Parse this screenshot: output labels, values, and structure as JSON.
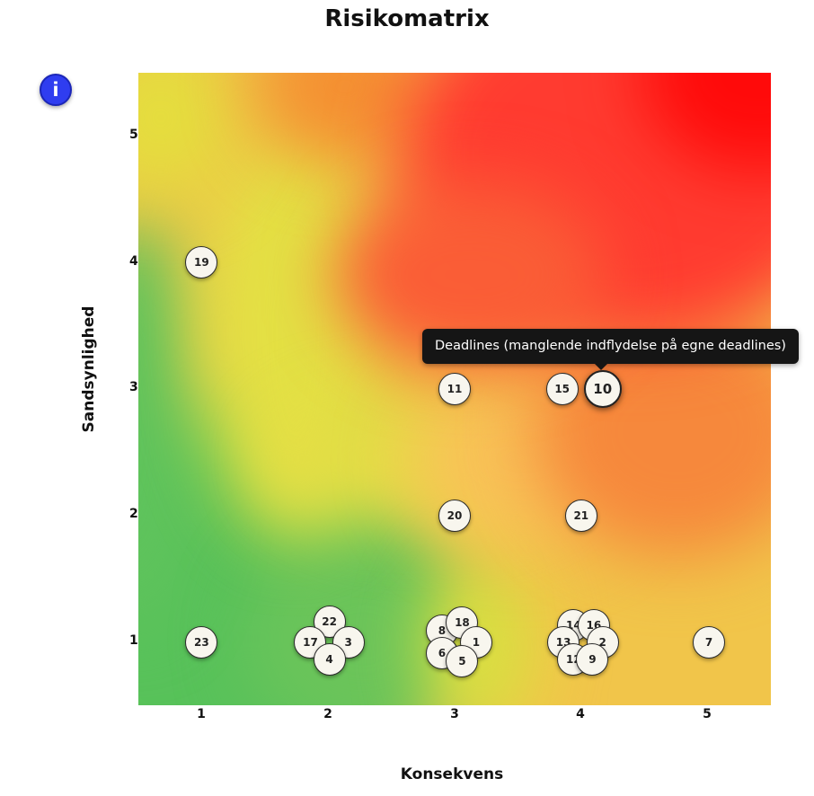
{
  "chart_data": {
    "type": "scatter",
    "title": "Risikomatrix",
    "xlabel": "Konsekvens",
    "ylabel": "Sandsynlighed",
    "xlim": [
      0.5,
      5.5
    ],
    "ylim": [
      0.5,
      5.5
    ],
    "xticks": [
      1,
      2,
      3,
      4,
      5
    ],
    "yticks": [
      1,
      2,
      3,
      4,
      5
    ],
    "grid": false,
    "background": "risk heatmap gradient: green (low) through yellow to red (high)",
    "colors": {
      "low": "#5ec45c",
      "medium": "#e3e040",
      "high": "#ff0000"
    },
    "points": [
      {
        "label": "19",
        "x": 1,
        "y": 4
      },
      {
        "label": "11",
        "x": 3,
        "y": 3
      },
      {
        "label": "15",
        "x": 3.85,
        "y": 3
      },
      {
        "label": "10",
        "x": 4.17,
        "y": 3
      },
      {
        "label": "20",
        "x": 3,
        "y": 2
      },
      {
        "label": "21",
        "x": 4,
        "y": 2
      },
      {
        "label": "23",
        "x": 1,
        "y": 1
      },
      {
        "label": "22",
        "x": 2.01,
        "y": 1.16
      },
      {
        "label": "17",
        "x": 1.86,
        "y": 1
      },
      {
        "label": "3",
        "x": 2.16,
        "y": 1
      },
      {
        "label": "4",
        "x": 2.01,
        "y": 0.86
      },
      {
        "label": "8",
        "x": 2.9,
        "y": 1.09
      },
      {
        "label": "18",
        "x": 3.06,
        "y": 1.15
      },
      {
        "label": "1",
        "x": 3.17,
        "y": 1
      },
      {
        "label": "6",
        "x": 2.9,
        "y": 0.91
      },
      {
        "label": "5",
        "x": 3.06,
        "y": 0.85
      },
      {
        "label": "14",
        "x": 3.94,
        "y": 1.13
      },
      {
        "label": "16",
        "x": 4.1,
        "y": 1.13
      },
      {
        "label": "2",
        "x": 4.17,
        "y": 1
      },
      {
        "label": "13",
        "x": 3.86,
        "y": 1
      },
      {
        "label": "12",
        "x": 3.94,
        "y": 0.86
      },
      {
        "label": "9",
        "x": 4.09,
        "y": 0.86
      },
      {
        "label": "7",
        "x": 5.01,
        "y": 1
      }
    ],
    "tooltip": {
      "point": "10",
      "text": "Deadlines (manglende indflydelse på egne deadlines)"
    }
  },
  "info_button": {
    "label": "i"
  }
}
